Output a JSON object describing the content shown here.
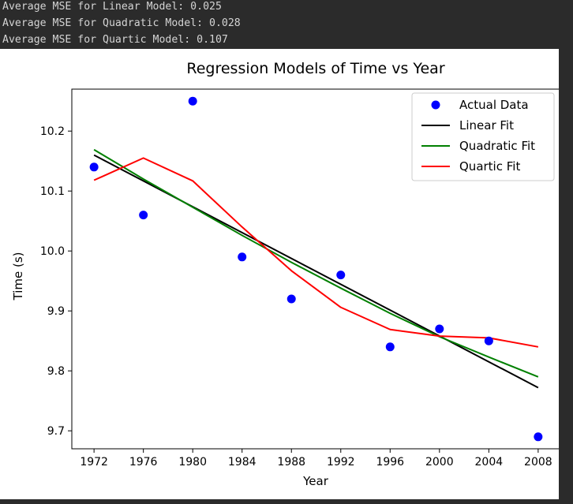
{
  "console": {
    "lines": [
      "Average MSE for Linear Model: 0.025",
      "Average MSE for Quadratic Model: 0.028",
      "Average MSE for Quartic Model: 0.107"
    ]
  },
  "colors": {
    "actual": "#0000ff",
    "linear": "#000000",
    "quadratic": "#008000",
    "quartic": "#ff0000"
  },
  "chart_data": {
    "type": "scatter",
    "title": "Regression Models of Time vs Year",
    "xlabel": "Year",
    "ylabel": "Time (s)",
    "xlim": [
      1970.2,
      2009.8
    ],
    "ylim": [
      9.67,
      10.27
    ],
    "xticks": [
      1972,
      1976,
      1980,
      1984,
      1988,
      1992,
      1996,
      2000,
      2004,
      2008
    ],
    "yticks": [
      9.7,
      9.8,
      9.9,
      10.0,
      10.1,
      10.2
    ],
    "ytick_labels": [
      "9.7",
      "9.8",
      "9.9",
      "10.0",
      "10.1",
      "10.2"
    ],
    "grid": false,
    "legend_position": "top-right",
    "series": [
      {
        "name": "Actual Data",
        "kind": "scatter",
        "color": "#0000ff",
        "x": [
          1972,
          1976,
          1980,
          1984,
          1988,
          1992,
          1996,
          2000,
          2004,
          2008
        ],
        "y": [
          10.14,
          10.06,
          10.25,
          9.99,
          9.92,
          9.96,
          9.84,
          9.87,
          9.85,
          9.69
        ]
      },
      {
        "name": "Linear Fit",
        "kind": "line",
        "color": "#000000",
        "x": [
          1972,
          2008
        ],
        "y": [
          10.16,
          9.772
        ]
      },
      {
        "name": "Quadratic Fit",
        "kind": "line",
        "color": "#008000",
        "x": [
          1972,
          1976,
          1980,
          1984,
          1988,
          1992,
          1996,
          2000,
          2004,
          2008
        ],
        "y": [
          10.169,
          10.12,
          10.073,
          10.026,
          9.981,
          9.938,
          9.896,
          9.857,
          9.823,
          9.79
        ]
      },
      {
        "name": "Quartic Fit",
        "kind": "line",
        "color": "#ff0000",
        "x": [
          1972,
          1976,
          1980,
          1984,
          1988,
          1992,
          1996,
          2000,
          2004,
          2008
        ],
        "y": [
          10.118,
          10.155,
          10.117,
          10.04,
          9.967,
          9.906,
          9.869,
          9.858,
          9.855,
          9.84
        ]
      }
    ]
  }
}
